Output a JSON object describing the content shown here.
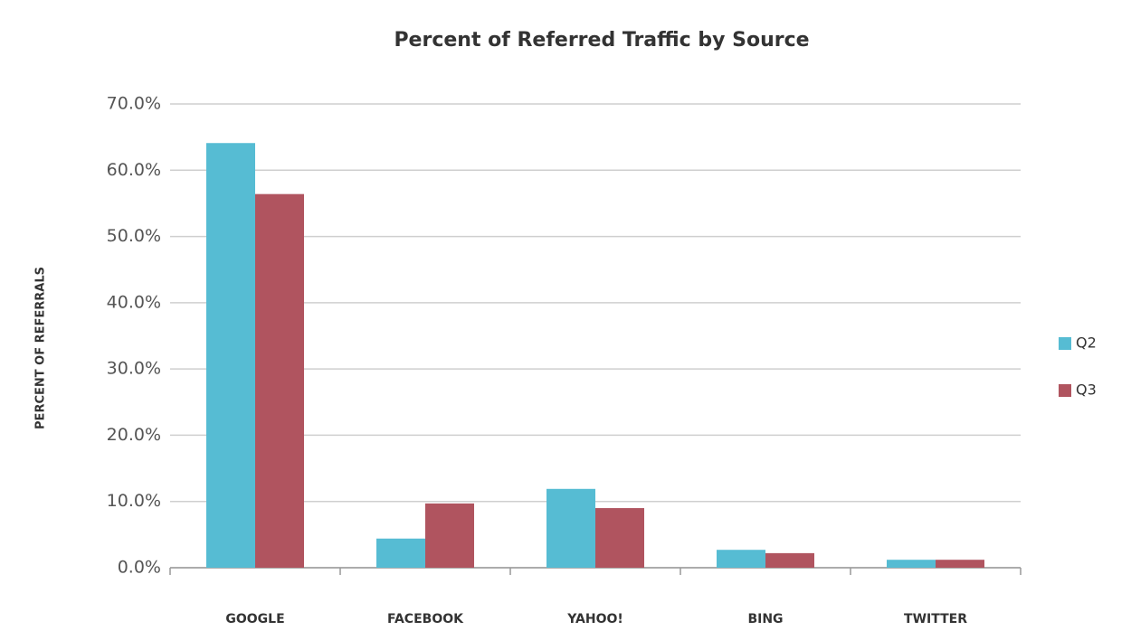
{
  "chart_data": {
    "type": "bar",
    "title": "Percent of Referred Traffic by Source",
    "y_label": "PERCENT OF REFERRALS",
    "categories": [
      "GOOGLE",
      "FACEBOOK",
      "YAHOO!",
      "BING",
      "TWITTER"
    ],
    "series": [
      {
        "name": "Q2",
        "color": "#56bcd3",
        "values": [
          64.1,
          4.4,
          11.9,
          2.7,
          1.2
        ]
      },
      {
        "name": "Q3",
        "color": "#b0545f",
        "values": [
          56.4,
          9.7,
          9.0,
          2.2,
          1.2
        ]
      }
    ],
    "ylim": [
      0,
      70
    ],
    "yticks": [
      {
        "value": 0,
        "label": "0.0%"
      },
      {
        "value": 10,
        "label": "10.0%"
      },
      {
        "value": 20,
        "label": "20.0%"
      },
      {
        "value": 30,
        "label": "30.0%"
      },
      {
        "value": 40,
        "label": "40.0%"
      },
      {
        "value": 50,
        "label": "50.0%"
      },
      {
        "value": 60,
        "label": "60.0%"
      },
      {
        "value": 70,
        "label": "70.0%"
      }
    ],
    "grid": true,
    "legend": "right"
  }
}
